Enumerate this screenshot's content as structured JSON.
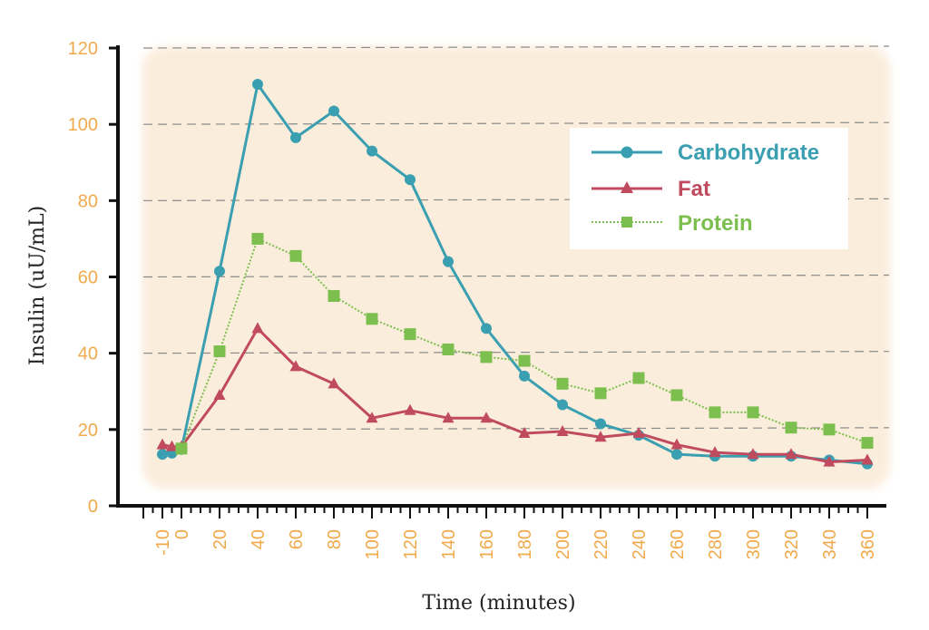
{
  "chart_data": {
    "type": "line",
    "xlabel": "Time (minutes)",
    "ylabel": "Insulin (uU/mL)",
    "ylim": [
      0,
      120
    ],
    "yticks": [
      0,
      20,
      40,
      60,
      80,
      100,
      120
    ],
    "xticks": [
      -10,
      0,
      20,
      40,
      60,
      80,
      100,
      120,
      140,
      160,
      180,
      200,
      220,
      240,
      260,
      280,
      300,
      320,
      340,
      360
    ],
    "x_tick_labels": [
      "-10",
      "0",
      "20",
      "40",
      "60",
      "80",
      "100",
      "120",
      "140",
      "160",
      "180",
      "200",
      "220",
      "240",
      "260",
      "280",
      "300",
      "320",
      "340",
      "360"
    ],
    "y_tick_labels": [
      "0",
      "20",
      "40",
      "60",
      "80",
      "100",
      "120"
    ],
    "grid": "horizontal dashed",
    "legend_position": "top-right",
    "series": [
      {
        "name": "Carbohydrate",
        "color": "#3a9fb0",
        "marker": "circle",
        "line": "solid",
        "x": [
          -10,
          -5,
          0,
          20,
          40,
          60,
          80,
          100,
          120,
          140,
          160,
          180,
          200,
          220,
          240,
          260,
          280,
          300,
          320,
          340,
          360
        ],
        "y": [
          13.5,
          13.8,
          14.8,
          61.5,
          110.5,
          96.5,
          103.5,
          93,
          85.5,
          64,
          46.5,
          34,
          26.5,
          21.5,
          18.5,
          13.5,
          13,
          13,
          13,
          12,
          11
        ]
      },
      {
        "name": "Fat",
        "color": "#c04a5e",
        "marker": "triangle",
        "line": "solid",
        "x": [
          -10,
          -5,
          0,
          20,
          40,
          60,
          80,
          100,
          120,
          140,
          160,
          180,
          200,
          220,
          240,
          260,
          280,
          300,
          320,
          340,
          360
        ],
        "y": [
          16,
          15.5,
          15.5,
          29,
          46.5,
          36.5,
          32,
          23,
          25,
          23,
          23,
          19,
          19.5,
          18,
          19,
          16,
          14,
          13.5,
          13.5,
          11.5,
          12
        ]
      },
      {
        "name": "Protein",
        "color": "#7cbf4e",
        "marker": "square",
        "line": "dotted",
        "x": [
          0,
          20,
          40,
          60,
          80,
          100,
          120,
          140,
          160,
          180,
          200,
          220,
          240,
          260,
          280,
          300,
          320,
          340,
          360
        ],
        "y": [
          15,
          40.5,
          70,
          65.5,
          55,
          49,
          45,
          41,
          39,
          38,
          32,
          29.5,
          33.5,
          29,
          24.5,
          24.5,
          20.5,
          20,
          16.5
        ]
      }
    ]
  },
  "colors": {
    "background_panel": "#fbefe0",
    "tick_label": "#f0aa4c",
    "axis": "#111111",
    "grid": "#8a8a8a"
  }
}
